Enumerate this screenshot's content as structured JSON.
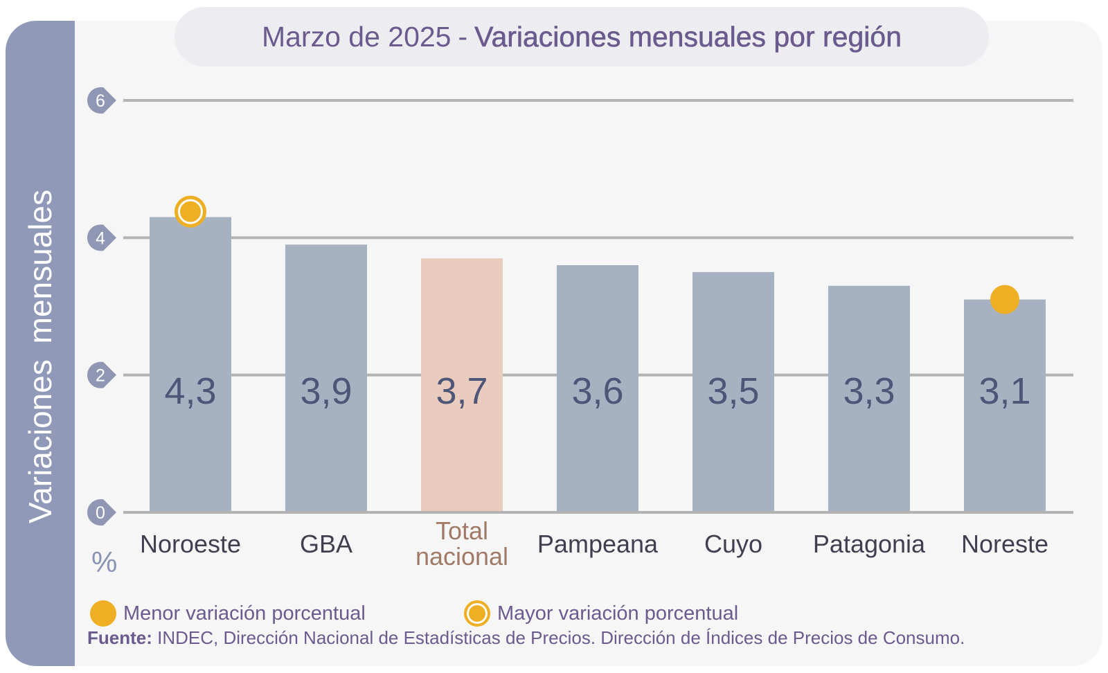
{
  "side_title": "Variaciones mensuales",
  "title": {
    "part1": "Marzo de 2025",
    "separator": "-",
    "part2": "Variaciones mensuales por región"
  },
  "unit": "%",
  "legend": {
    "min": "Menor variación porcentual",
    "max": "Mayor variación porcentual"
  },
  "source": {
    "label": "Fuente:",
    "text": "INDEC, Dirección Nacional de Estadísticas de Precios. Dirección de Índices de Precios de Consumo."
  },
  "colors": {
    "bar": "#a6b1c1",
    "highlight_bar": "#e9ccbd",
    "highlight_label": "#a07a67",
    "marker": "#efaf24",
    "grid": "#b3b3b3",
    "value_text": "#4e5677",
    "tick_badge": "#8f97b5"
  },
  "chart_data": {
    "type": "bar",
    "categories": [
      "Noroeste",
      "GBA",
      "Total nacional",
      "Pampeana",
      "Cuyo",
      "Patagonia",
      "Noreste"
    ],
    "values": [
      4.3,
      3.9,
      3.7,
      3.6,
      3.5,
      3.3,
      3.1
    ],
    "value_labels": [
      "4,3",
      "3,9",
      "3,7",
      "3,6",
      "3,5",
      "3,3",
      "3,1"
    ],
    "highlight_category": "Total nacional",
    "max_marker": "Noroeste",
    "min_marker": "Noreste",
    "ylim": [
      0,
      6
    ],
    "yticks": [
      0,
      2,
      4,
      6
    ],
    "grid": true,
    "legend_position": "bottom-left"
  }
}
